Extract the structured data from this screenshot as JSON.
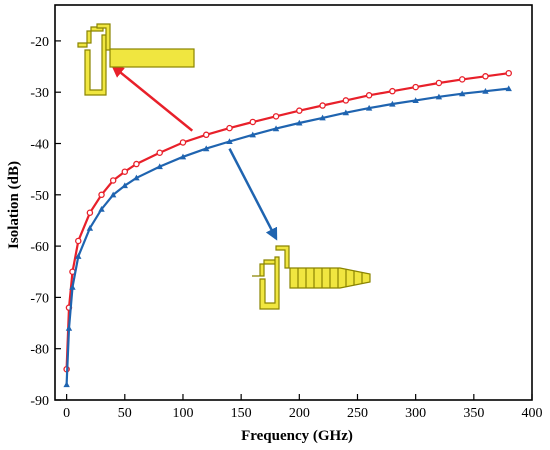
{
  "chart_data": {
    "type": "line",
    "title": "",
    "xlabel": "Frequency (GHz)",
    "ylabel": "Isolation (dB)",
    "xlim": [
      -10,
      400
    ],
    "ylim": [
      -90,
      -13
    ],
    "xticks": [
      0,
      50,
      100,
      150,
      200,
      250,
      300,
      350,
      400
    ],
    "yticks": [
      -20,
      -30,
      -40,
      -50,
      -60,
      -70,
      -80,
      -90
    ],
    "grid": false,
    "legend": "none",
    "series": [
      {
        "color": "#e8202a",
        "marker": "circle",
        "x": [
          0,
          2,
          5,
          10,
          20,
          30,
          40,
          50,
          60,
          80,
          100,
          120,
          140,
          160,
          180,
          200,
          220,
          240,
          260,
          280,
          300,
          320,
          340,
          360,
          380
        ],
        "y": [
          -84,
          -72,
          -65,
          -59,
          -53.5,
          -50,
          -47.2,
          -45.5,
          -44,
          -41.8,
          -39.8,
          -38.3,
          -37,
          -35.8,
          -34.7,
          -33.6,
          -32.6,
          -31.6,
          -30.6,
          -29.8,
          -29,
          -28.2,
          -27.5,
          -26.9,
          -26.3
        ]
      },
      {
        "color": "#1f64b0",
        "marker": "triangle",
        "x": [
          0,
          2,
          5,
          10,
          20,
          30,
          40,
          50,
          60,
          80,
          100,
          120,
          140,
          160,
          180,
          200,
          220,
          240,
          260,
          280,
          300,
          320,
          340,
          360,
          380
        ],
        "y": [
          -87,
          -76,
          -68,
          -62,
          -56.5,
          -52.8,
          -50,
          -48.2,
          -46.7,
          -44.5,
          -42.6,
          -41,
          -39.6,
          -38.3,
          -37.1,
          -36,
          -35,
          -34,
          -33.1,
          -32.3,
          -31.6,
          -30.9,
          -30.3,
          -29.8,
          -29.3
        ]
      }
    ],
    "annotations": [
      {
        "type": "arrow",
        "color": "#e8202a",
        "from": [
          108,
          -37.5
        ],
        "to": [
          40,
          -25
        ]
      },
      {
        "type": "arrow",
        "color": "#1f64b0",
        "from": [
          140,
          -41
        ],
        "to": [
          180,
          -58.5
        ]
      }
    ],
    "insets": [
      {
        "icon": "uniform-transmission-line-stub-icon",
        "color": "#f0e640"
      },
      {
        "icon": "tapered-transmission-line-stub-icon",
        "color": "#f0e640"
      }
    ]
  }
}
